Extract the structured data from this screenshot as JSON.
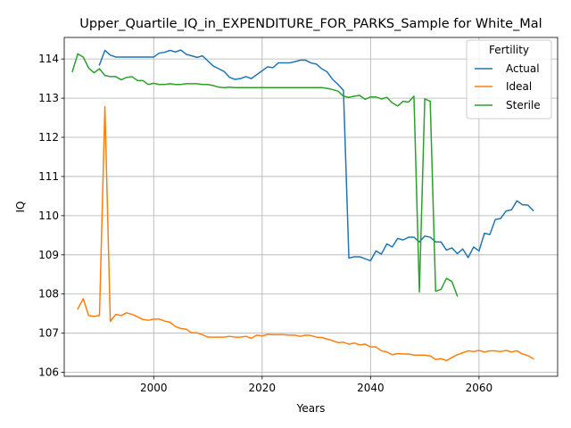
{
  "chart_data": {
    "type": "line",
    "title": "Upper_Quartile_IQ_in_EXPENDITURE_FOR_PARKS_Sample for White_Mal",
    "xlabel": "Years",
    "ylabel": "IQ",
    "xlim": [
      1983.5,
      2074.5
    ],
    "ylim": [
      105.9,
      114.55
    ],
    "xticks": [
      2000,
      2020,
      2040,
      2060
    ],
    "yticks": [
      106,
      107,
      108,
      109,
      110,
      111,
      112,
      113,
      114
    ],
    "grid": true,
    "legend": {
      "title": "Fertility",
      "placement": "top-right"
    },
    "series": [
      {
        "name": "Actual",
        "color": "#1f77b4",
        "x": [
          1990,
          1991,
          1992,
          1993,
          1994,
          1995,
          1996,
          1997,
          1998,
          1999,
          2000,
          2001,
          2002,
          2003,
          2004,
          2005,
          2006,
          2007,
          2008,
          2009,
          2010,
          2011,
          2012,
          2013,
          2014,
          2015,
          2016,
          2017,
          2018,
          2019,
          2020,
          2021,
          2022,
          2023,
          2024,
          2025,
          2026,
          2027,
          2028,
          2029,
          2030,
          2031,
          2032,
          2033,
          2034,
          2035,
          2036,
          2037,
          2038,
          2039,
          2040,
          2041,
          2042,
          2043,
          2044,
          2045,
          2046,
          2047,
          2048,
          2049,
          2050,
          2051,
          2052,
          2053,
          2054,
          2055,
          2056,
          2057,
          2058,
          2059,
          2060,
          2061,
          2062,
          2063,
          2064,
          2065,
          2066,
          2067,
          2068,
          2069,
          2070
        ],
        "values": [
          113.85,
          114.22,
          114.1,
          114.05,
          114.05,
          114.05,
          114.05,
          114.05,
          114.05,
          114.05,
          114.05,
          114.15,
          114.17,
          114.22,
          114.18,
          114.23,
          114.12,
          114.08,
          114.04,
          114.08,
          113.95,
          113.82,
          113.75,
          113.68,
          113.53,
          113.48,
          113.5,
          113.55,
          113.5,
          113.6,
          113.7,
          113.8,
          113.78,
          113.9,
          113.9,
          113.9,
          113.93,
          113.97,
          113.97,
          113.9,
          113.87,
          113.75,
          113.67,
          113.48,
          113.35,
          113.2,
          108.92,
          108.95,
          108.95,
          108.9,
          108.85,
          109.1,
          109.02,
          109.28,
          109.2,
          109.42,
          109.38,
          109.45,
          109.45,
          109.33,
          109.48,
          109.45,
          109.33,
          109.33,
          109.12,
          109.18,
          109.03,
          109.15,
          108.93,
          109.2,
          109.1,
          109.55,
          109.52,
          109.9,
          109.93,
          110.12,
          110.15,
          110.38,
          110.28,
          110.27,
          110.13
        ]
      },
      {
        "name": "Ideal",
        "color": "#ff7f0e",
        "x": [
          1986,
          1987,
          1988,
          1989,
          1990,
          1991,
          1992,
          1993,
          1994,
          1995,
          1996,
          1997,
          1998,
          1999,
          2000,
          2001,
          2002,
          2003,
          2004,
          2005,
          2006,
          2007,
          2008,
          2009,
          2010,
          2011,
          2012,
          2013,
          2014,
          2015,
          2016,
          2017,
          2018,
          2019,
          2020,
          2021,
          2022,
          2023,
          2024,
          2025,
          2026,
          2027,
          2028,
          2029,
          2030,
          2031,
          2032,
          2033,
          2034,
          2035,
          2036,
          2037,
          2038,
          2039,
          2040,
          2041,
          2042,
          2043,
          2044,
          2045,
          2046,
          2047,
          2048,
          2049,
          2050,
          2051,
          2052,
          2053,
          2054,
          2055,
          2056,
          2057,
          2058,
          2059,
          2060,
          2061,
          2062,
          2063,
          2064,
          2065,
          2066,
          2067,
          2068,
          2069,
          2070
        ],
        "values": [
          107.62,
          107.88,
          107.45,
          107.43,
          107.45,
          112.78,
          107.3,
          107.48,
          107.45,
          107.52,
          107.48,
          107.42,
          107.35,
          107.33,
          107.36,
          107.36,
          107.31,
          107.28,
          107.17,
          107.12,
          107.1,
          107.01,
          107.01,
          106.96,
          106.9,
          106.9,
          106.9,
          106.9,
          106.92,
          106.9,
          106.9,
          106.92,
          106.87,
          106.95,
          106.93,
          106.97,
          106.96,
          106.96,
          106.96,
          106.95,
          106.95,
          106.92,
          106.95,
          106.94,
          106.9,
          106.89,
          106.85,
          106.81,
          106.76,
          106.77,
          106.72,
          106.75,
          106.7,
          106.72,
          106.65,
          106.65,
          106.55,
          106.52,
          106.45,
          106.48,
          106.47,
          106.47,
          106.44,
          106.44,
          106.44,
          106.42,
          106.33,
          106.35,
          106.3,
          106.38,
          106.45,
          106.5,
          106.55,
          106.53,
          106.56,
          106.52,
          106.55,
          106.55,
          106.53,
          106.56,
          106.52,
          106.55,
          106.47,
          106.43,
          106.35
        ]
      },
      {
        "name": "Sterile",
        "color": "#2ca02c",
        "x": [
          1985,
          1986,
          1987,
          1988,
          1989,
          1990,
          1991,
          1992,
          1993,
          1994,
          1995,
          1996,
          1997,
          1998,
          1999,
          2000,
          2001,
          2002,
          2003,
          2004,
          2005,
          2006,
          2007,
          2008,
          2009,
          2010,
          2011,
          2012,
          2013,
          2014,
          2015,
          2016,
          2017,
          2018,
          2019,
          2020,
          2021,
          2022,
          2023,
          2024,
          2025,
          2026,
          2027,
          2028,
          2029,
          2030,
          2031,
          2032,
          2033,
          2034,
          2035,
          2036,
          2037,
          2038,
          2039,
          2040,
          2041,
          2042,
          2043,
          2044,
          2045,
          2046,
          2047,
          2048,
          2049,
          2050,
          2051,
          2052,
          2053,
          2054,
          2055,
          2056
        ],
        "values": [
          113.68,
          114.13,
          114.05,
          113.77,
          113.65,
          113.75,
          113.58,
          113.55,
          113.55,
          113.47,
          113.53,
          113.55,
          113.45,
          113.45,
          113.35,
          113.38,
          113.35,
          113.35,
          113.37,
          113.35,
          113.35,
          113.37,
          113.37,
          113.37,
          113.35,
          113.35,
          113.32,
          113.28,
          113.27,
          113.28,
          113.27,
          113.27,
          113.27,
          113.27,
          113.27,
          113.27,
          113.27,
          113.27,
          113.27,
          113.27,
          113.27,
          113.27,
          113.27,
          113.27,
          113.27,
          113.27,
          113.27,
          113.25,
          113.22,
          113.18,
          113.05,
          113.02,
          113.05,
          113.07,
          112.97,
          113.03,
          113.03,
          112.98,
          113.02,
          112.88,
          112.8,
          112.92,
          112.9,
          113.05,
          108.05,
          112.98,
          112.92,
          108.07,
          108.12,
          108.4,
          108.32,
          107.95
        ]
      }
    ]
  }
}
